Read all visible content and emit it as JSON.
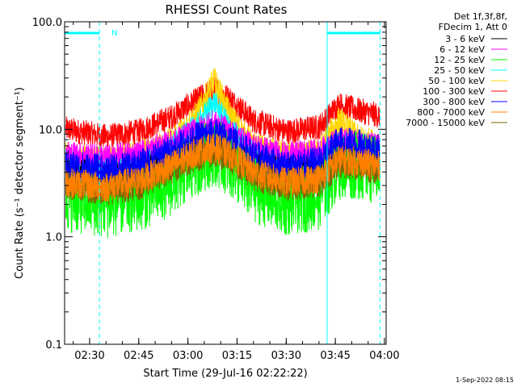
{
  "chart_data": {
    "type": "line",
    "title": "RHESSI Count Rates",
    "xlabel": "Start Time (29-Jul-16 02:22:22)",
    "ylabel": "Count Rate (s⁻¹ detector segment⁻¹)",
    "yscale": "log",
    "ylim": [
      0.1,
      100.0
    ],
    "xlim": [
      "02:22:22",
      "04:00:30"
    ],
    "x_ticks": [
      "02:30",
      "02:45",
      "03:00",
      "03:15",
      "03:30",
      "03:45",
      "04:00"
    ],
    "y_ticks": [
      "0.1",
      "1.0",
      "10.0",
      "100.0"
    ],
    "legend_header": [
      "Det 1f,3f,8f,",
      "FDecim 1, Att 0"
    ],
    "legend_position": "right",
    "series": [
      {
        "name": "3 - 6 keV",
        "color": "#000000",
        "points": [
          [
            "02:23",
            4.0
          ],
          [
            "02:35",
            3.6
          ],
          [
            "02:45",
            4.0
          ],
          [
            "02:55",
            5.0
          ],
          [
            "03:03",
            6.5
          ],
          [
            "03:08",
            7.3
          ],
          [
            "03:13",
            6.2
          ],
          [
            "03:20",
            4.8
          ],
          [
            "03:30",
            4.0
          ],
          [
            "03:40",
            4.2
          ],
          [
            "03:46",
            5.4
          ],
          [
            "03:52",
            5.0
          ],
          [
            "03:58",
            4.6
          ]
        ]
      },
      {
        "name": "6 - 12 keV",
        "color": "#ff00ff",
        "points": [
          [
            "02:23",
            6.0
          ],
          [
            "02:35",
            5.5
          ],
          [
            "02:45",
            6.0
          ],
          [
            "02:55",
            7.5
          ],
          [
            "03:03",
            10.0
          ],
          [
            "03:08",
            11.5
          ],
          [
            "03:13",
            9.5
          ],
          [
            "03:20",
            7.0
          ],
          [
            "03:30",
            5.8
          ],
          [
            "03:40",
            6.2
          ],
          [
            "03:46",
            8.0
          ],
          [
            "03:52",
            7.5
          ],
          [
            "03:58",
            7.0
          ]
        ]
      },
      {
        "name": "12 - 25 keV",
        "color": "#00ff00",
        "points": [
          [
            "02:23",
            2.3
          ],
          [
            "02:35",
            2.0
          ],
          [
            "02:45",
            2.3
          ],
          [
            "02:55",
            3.2
          ],
          [
            "03:03",
            5.0
          ],
          [
            "03:08",
            6.2
          ],
          [
            "03:13",
            4.8
          ],
          [
            "03:20",
            2.8
          ],
          [
            "03:30",
            2.1
          ],
          [
            "03:40",
            2.4
          ],
          [
            "03:46",
            4.6
          ],
          [
            "03:52",
            4.6
          ],
          [
            "03:58",
            4.2
          ]
        ]
      },
      {
        "name": "25 - 50 keV",
        "color": "#00ffff",
        "points": [
          [
            "02:23",
            5.0
          ],
          [
            "02:35",
            4.5
          ],
          [
            "02:45",
            5.0
          ],
          [
            "02:55",
            6.8
          ],
          [
            "03:03",
            11.0
          ],
          [
            "03:08",
            18.0
          ],
          [
            "03:13",
            10.0
          ],
          [
            "03:20",
            6.0
          ],
          [
            "03:30",
            4.8
          ],
          [
            "03:40",
            5.2
          ],
          [
            "03:46",
            7.5
          ],
          [
            "03:52",
            7.0
          ],
          [
            "03:58",
            6.5
          ]
        ]
      },
      {
        "name": "50 - 100 keV",
        "color": "#ffd700",
        "points": [
          [
            "02:23",
            5.5
          ],
          [
            "02:35",
            5.0
          ],
          [
            "02:45",
            5.8
          ],
          [
            "02:55",
            7.5
          ],
          [
            "03:03",
            14.0
          ],
          [
            "03:08",
            28.0
          ],
          [
            "03:13",
            13.0
          ],
          [
            "03:20",
            6.8
          ],
          [
            "03:30",
            5.5
          ],
          [
            "03:40",
            6.0
          ],
          [
            "03:46",
            12.0
          ],
          [
            "03:52",
            8.0
          ],
          [
            "03:58",
            7.2
          ]
        ]
      },
      {
        "name": "100 - 300 keV",
        "color": "#ff0000",
        "points": [
          [
            "02:23",
            10.0
          ],
          [
            "02:35",
            8.5
          ],
          [
            "02:45",
            9.5
          ],
          [
            "02:55",
            13.0
          ],
          [
            "03:03",
            19.0
          ],
          [
            "03:08",
            24.0
          ],
          [
            "03:13",
            19.0
          ],
          [
            "03:20",
            12.0
          ],
          [
            "03:30",
            9.5
          ],
          [
            "03:40",
            10.5
          ],
          [
            "03:46",
            17.0
          ],
          [
            "03:52",
            15.0
          ],
          [
            "03:58",
            13.5
          ]
        ]
      },
      {
        "name": "300 - 800 keV",
        "color": "#0000ff",
        "points": [
          [
            "02:23",
            4.5
          ],
          [
            "02:35",
            4.0
          ],
          [
            "02:45",
            4.5
          ],
          [
            "02:55",
            6.2
          ],
          [
            "03:03",
            8.2
          ],
          [
            "03:08",
            9.0
          ],
          [
            "03:13",
            7.8
          ],
          [
            "03:20",
            5.5
          ],
          [
            "03:30",
            4.4
          ],
          [
            "03:40",
            4.8
          ],
          [
            "03:46",
            7.5
          ],
          [
            "03:52",
            7.0
          ],
          [
            "03:58",
            6.3
          ]
        ]
      },
      {
        "name": "800 - 7000 keV",
        "color": "#ff8000",
        "points": [
          [
            "02:23",
            3.2
          ],
          [
            "02:35",
            2.9
          ],
          [
            "02:45",
            3.3
          ],
          [
            "02:55",
            4.6
          ],
          [
            "03:03",
            6.2
          ],
          [
            "03:08",
            6.8
          ],
          [
            "03:13",
            5.8
          ],
          [
            "03:20",
            4.0
          ],
          [
            "03:30",
            3.2
          ],
          [
            "03:40",
            3.5
          ],
          [
            "03:46",
            5.2
          ],
          [
            "03:52",
            5.0
          ],
          [
            "03:58",
            4.6
          ]
        ]
      },
      {
        "name": "7000 - 15000 keV",
        "color": "#806000",
        "points": [
          [
            "02:23",
            3.0
          ],
          [
            "02:35",
            2.7
          ],
          [
            "02:45",
            3.0
          ],
          [
            "02:55",
            4.2
          ],
          [
            "03:03",
            5.6
          ],
          [
            "03:08",
            6.2
          ],
          [
            "03:13",
            5.3
          ],
          [
            "03:20",
            3.7
          ],
          [
            "03:30",
            2.9
          ],
          [
            "03:40",
            3.2
          ],
          [
            "03:46",
            4.8
          ],
          [
            "03:52",
            4.6
          ],
          [
            "03:58",
            4.2
          ]
        ]
      }
    ],
    "annotations": [
      {
        "text": "N",
        "color": "#00ffff"
      }
    ],
    "intervals": [
      {
        "start": "02:22:22",
        "end": "02:33:00",
        "color": "#00ffff"
      },
      {
        "start": "03:42:30",
        "end": "03:58:40",
        "color": "#00ffff"
      }
    ]
  },
  "footer": {
    "timestamp": "1-Sep-2022 08:15"
  }
}
